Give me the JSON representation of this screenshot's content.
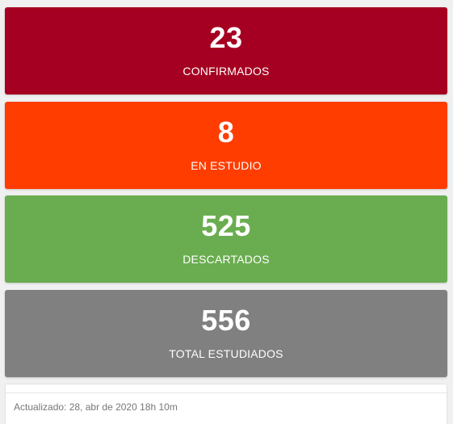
{
  "stats": [
    {
      "value": "23",
      "label": "CONFIRMADOS",
      "color": "#a50021"
    },
    {
      "value": "8",
      "label": "EN ESTUDIO",
      "color": "#ff3d00"
    },
    {
      "value": "525",
      "label": "DESCARTADOS",
      "color": "#6aad50"
    },
    {
      "value": "556",
      "label": "TOTAL ESTUDIADOS",
      "color": "#808080"
    }
  ],
  "footer": {
    "updated_text": "Actualizado: 28, abr de 2020 18h 10m"
  }
}
